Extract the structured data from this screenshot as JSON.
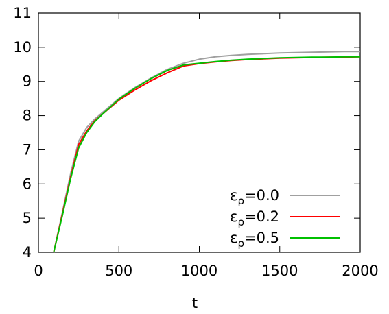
{
  "chart_data": {
    "type": "line",
    "xlabel": "t",
    "ylabel": "",
    "xlim": [
      0,
      2000
    ],
    "ylim": [
      4,
      11
    ],
    "x_ticks": [
      "0",
      "500",
      "1000",
      "1500",
      "2000"
    ],
    "y_ticks": [
      "4",
      "5",
      "6",
      "7",
      "8",
      "9",
      "10",
      "11"
    ],
    "grid": false,
    "legend_position": "bottom-right",
    "series": [
      {
        "name": "ε",
        "name_sub": "ρ",
        "name_suffix": "=0.0",
        "color": "#a0a0a0",
        "x": [
          95,
          150,
          200,
          250,
          300,
          350,
          400,
          500,
          600,
          700,
          800,
          900,
          1000,
          1100,
          1200,
          1300,
          1400,
          1500,
          1600,
          1700,
          1800,
          1900,
          2000
        ],
        "y": [
          4.0,
          5.2,
          6.3,
          7.25,
          7.65,
          7.9,
          8.1,
          8.5,
          8.82,
          9.1,
          9.35,
          9.53,
          9.65,
          9.72,
          9.76,
          9.79,
          9.81,
          9.83,
          9.84,
          9.85,
          9.86,
          9.87,
          9.87
        ]
      },
      {
        "name": "ε",
        "name_sub": "ρ",
        "name_suffix": "=0.2",
        "color": "#ff0000",
        "x": [
          95,
          150,
          200,
          250,
          300,
          350,
          400,
          500,
          600,
          700,
          800,
          900,
          1000,
          1100,
          1200,
          1300,
          1400,
          1500,
          1600,
          1700,
          1800,
          1900,
          2000
        ],
        "y": [
          4.0,
          5.15,
          6.2,
          7.15,
          7.55,
          7.85,
          8.05,
          8.45,
          8.75,
          9.02,
          9.25,
          9.45,
          9.52,
          9.57,
          9.61,
          9.64,
          9.66,
          9.68,
          9.69,
          9.7,
          9.71,
          9.71,
          9.72
        ]
      },
      {
        "name": "ε",
        "name_sub": "ρ",
        "name_suffix": "=0.5",
        "color": "#00c000",
        "x": [
          95,
          150,
          200,
          250,
          300,
          350,
          400,
          500,
          600,
          700,
          800,
          900,
          1000,
          1100,
          1200,
          1300,
          1400,
          1500,
          1600,
          1700,
          1800,
          1900,
          2000
        ],
        "y": [
          4.0,
          5.1,
          6.15,
          7.05,
          7.5,
          7.82,
          8.05,
          8.48,
          8.8,
          9.08,
          9.32,
          9.48,
          9.53,
          9.58,
          9.62,
          9.65,
          9.67,
          9.69,
          9.7,
          9.71,
          9.71,
          9.72,
          9.72
        ]
      }
    ]
  }
}
